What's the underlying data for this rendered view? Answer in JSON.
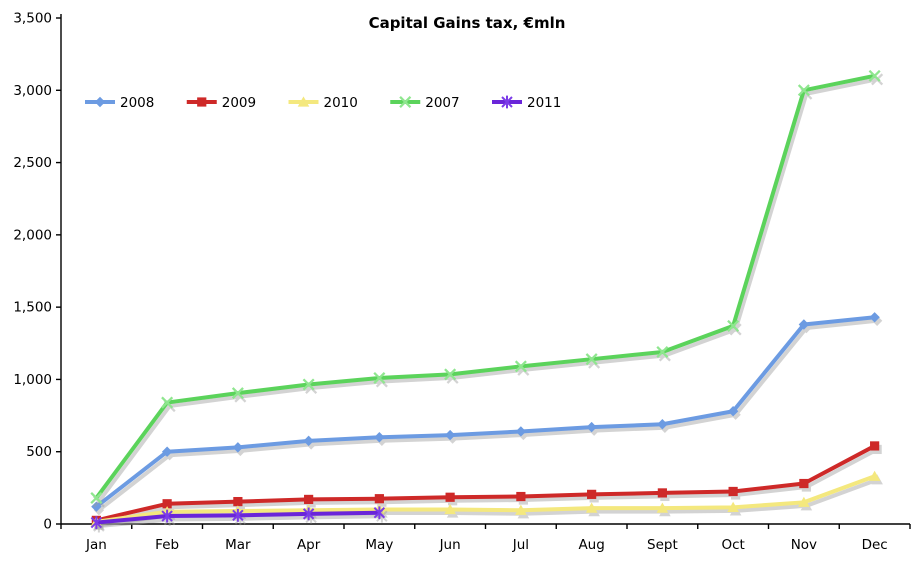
{
  "title": "Capital Gains tax, €mln",
  "chart_data": {
    "type": "line",
    "title": "Capital Gains tax, €mln",
    "categories": [
      "Jan",
      "Feb",
      "Mar",
      "Apr",
      "May",
      "Jun",
      "Jul",
      "Aug",
      "Sept",
      "Oct",
      "Nov",
      "Dec"
    ],
    "series": [
      {
        "name": "2008",
        "color": "#6C9BE2",
        "marker": "diamond",
        "values": [
          120,
          500,
          530,
          575,
          600,
          615,
          640,
          670,
          690,
          780,
          1380,
          1430
        ]
      },
      {
        "name": "2009",
        "color": "#CE2928",
        "marker": "square",
        "values": [
          25,
          140,
          155,
          170,
          175,
          185,
          190,
          205,
          215,
          225,
          280,
          540
        ]
      },
      {
        "name": "2010",
        "color": "#F4E87E",
        "marker": "triangle",
        "values": [
          15,
          85,
          90,
          95,
          100,
          100,
          95,
          110,
          110,
          115,
          150,
          330
        ]
      },
      {
        "name": "2007",
        "color": "#5BD35B",
        "marker": "x",
        "marker_color": "#8FE68F",
        "values": [
          180,
          840,
          905,
          965,
          1010,
          1035,
          1090,
          1140,
          1190,
          1370,
          3000,
          3100
        ]
      },
      {
        "name": "2011",
        "color": "#6A25D9",
        "marker": "asterisk",
        "marker_color": "#7B3BE8",
        "values": [
          10,
          55,
          60,
          70,
          78,
          null,
          null,
          null,
          null,
          null,
          null,
          null
        ]
      }
    ],
    "ylim": [
      0,
      3500
    ],
    "ytick_step": 500,
    "ytick_labels": [
      "0",
      "500",
      "1,000",
      "1,500",
      "2,000",
      "2,500",
      "3,000",
      "3,500"
    ],
    "legend_position": "top-left-row",
    "grid": "off",
    "shadow_color": "#9E9E9E"
  }
}
